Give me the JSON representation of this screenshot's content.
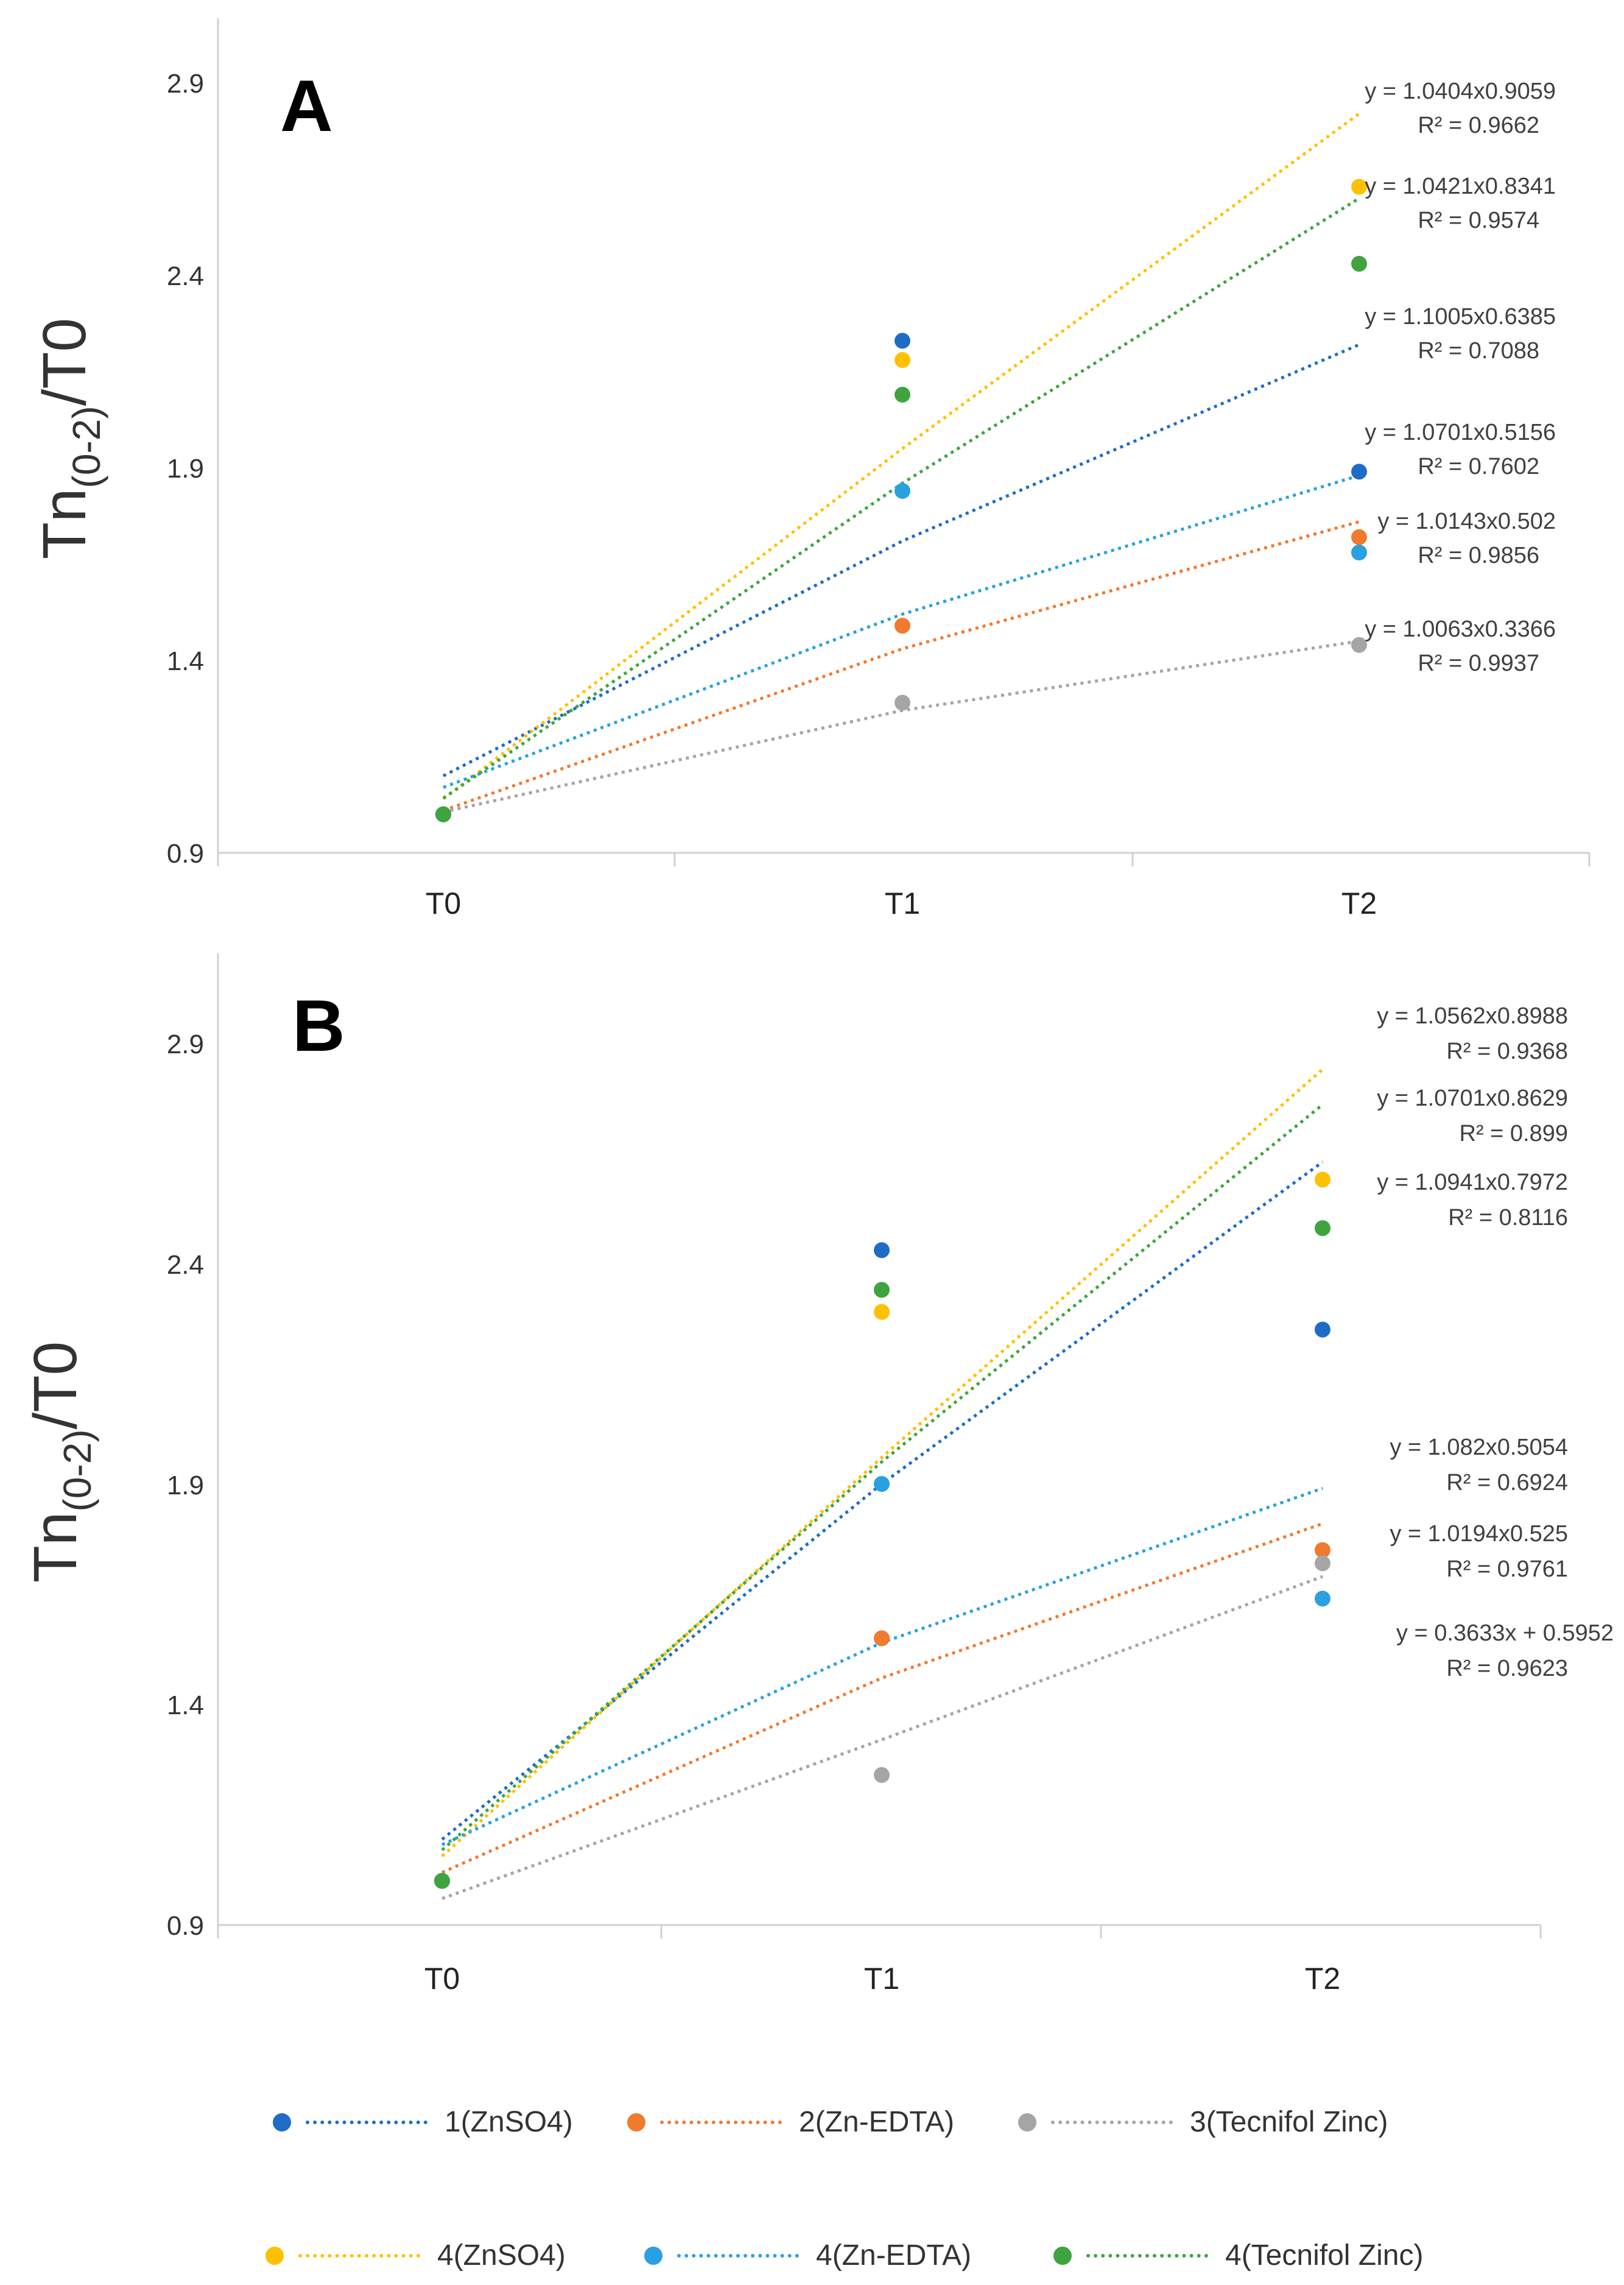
{
  "series_styles": [
    {
      "name": "1(ZnSO4)",
      "color": "#1f6cc6"
    },
    {
      "name": "2(Zn-EDTA)",
      "color": "#f07a2e"
    },
    {
      "name": "3(Tecnifol Zinc)",
      "color": "#a5a5a5"
    },
    {
      "name": "4(ZnSO4)",
      "color": "#ffc000"
    },
    {
      "name": "4(Zn-EDTA)",
      "color": "#2aa0e0"
    },
    {
      "name": "4(Tecnifol Zinc)",
      "color": "#3fa43f"
    }
  ],
  "legend": {
    "items": [
      "1(ZnSO4)",
      "2(Zn-EDTA)",
      "3(Tecnifol Zinc)",
      "4(ZnSO4)",
      "4(Zn-EDTA)",
      "4(Tecnifol Zinc)"
    ]
  },
  "chart_data": [
    {
      "panel": "A",
      "type": "scatter",
      "ylabel": "Tn(0-2)/T0",
      "ylabel_main": "Tn",
      "ylabel_sub": "(0-2)",
      "ylabel_tail": "/T0",
      "categories": [
        "T0",
        "T1",
        "T2"
      ],
      "ylim": [
        0.9,
        3.0
      ],
      "yticks": [
        "0.9",
        "1.4",
        "1.9",
        "2.4",
        "2.9"
      ],
      "series": [
        {
          "name": "1(ZnSO4)",
          "values": [
            1.0,
            2.23,
            1.89
          ],
          "trend": [
            1.1,
            1.71,
            2.22
          ],
          "equation": "y = 1.1005x0.6385",
          "r2": "R² = 0.7088"
        },
        {
          "name": "2(Zn-EDTA)",
          "values": [
            1.0,
            1.49,
            1.72
          ],
          "trend": [
            1.01,
            1.43,
            1.76
          ],
          "equation": "y = 1.0143x0.502",
          "r2": "R² = 0.9856"
        },
        {
          "name": "3(Tecnifol Zinc)",
          "values": [
            1.0,
            1.29,
            1.44
          ],
          "trend": [
            1.006,
            1.27,
            1.45
          ],
          "equation": "y = 1.0063x0.3366",
          "r2": "R² = 0.9937"
        },
        {
          "name": "4(ZnSO4)",
          "values": [
            1.0,
            2.18,
            2.63
          ],
          "trend": [
            1.04,
            1.95,
            2.82
          ],
          "equation": "y = 1.0404x0.9059",
          "r2": "R² = 0.9662"
        },
        {
          "name": "4(Zn-EDTA)",
          "values": [
            1.0,
            1.84,
            1.68
          ],
          "trend": [
            1.07,
            1.52,
            1.88
          ],
          "equation": "y = 1.0701x0.5156",
          "r2": "R² = 0.7602"
        },
        {
          "name": "4(Tecnifol Zinc)",
          "values": [
            1.0,
            2.09,
            2.43
          ],
          "trend": [
            1.042,
            1.86,
            2.6
          ],
          "equation": "y = 1.0421x0.8341",
          "r2": "R² = 0.9574"
        }
      ]
    },
    {
      "panel": "B",
      "type": "scatter",
      "ylabel": "Tn(0-2)/T0",
      "ylabel_main": "Tn",
      "ylabel_sub": "(0-2)",
      "ylabel_tail": "/T0",
      "categories": [
        "T0",
        "T1",
        "T2"
      ],
      "ylim": [
        0.9,
        3.1
      ],
      "yticks": [
        "0.9",
        "1.4",
        "1.9",
        "2.4",
        "2.9"
      ],
      "series": [
        {
          "name": "1(ZnSO4)",
          "values": [
            1.0,
            2.43,
            2.25
          ],
          "trend": [
            1.094,
            1.9,
            2.63
          ],
          "equation": "y = 1.0941x0.7972",
          "r2": "R² = 0.8116"
        },
        {
          "name": "2(Zn-EDTA)",
          "values": [
            1.0,
            1.55,
            1.75
          ],
          "trend": [
            1.019,
            1.46,
            1.81
          ],
          "equation": "y = 1.0194x0.525",
          "r2": "R² = 0.9761"
        },
        {
          "name": "3(Tecnifol Zinc)",
          "values": [
            1.0,
            1.24,
            1.72
          ],
          "trend": [
            0.96,
            1.32,
            1.69
          ],
          "equation": "y = 0.3633x + 0.5952",
          "r2": "R² = 0.9623"
        },
        {
          "name": "4(ZnSO4)",
          "values": [
            1.0,
            2.29,
            2.59
          ],
          "trend": [
            1.056,
            1.96,
            2.84
          ],
          "equation": "y = 1.0562x0.8988",
          "r2": "R² = 0.9368"
        },
        {
          "name": "4(Zn-EDTA)",
          "values": [
            1.0,
            1.9,
            1.64
          ],
          "trend": [
            1.082,
            1.54,
            1.89
          ],
          "equation": "y = 1.082x0.5054",
          "r2": "R² = 0.6924"
        },
        {
          "name": "4(Tecnifol Zinc)",
          "values": [
            1.0,
            2.34,
            2.48
          ],
          "trend": [
            1.07,
            1.95,
            2.76
          ],
          "equation": "y = 1.0701x0.8629",
          "r2": "R² = 0.899"
        }
      ]
    }
  ]
}
